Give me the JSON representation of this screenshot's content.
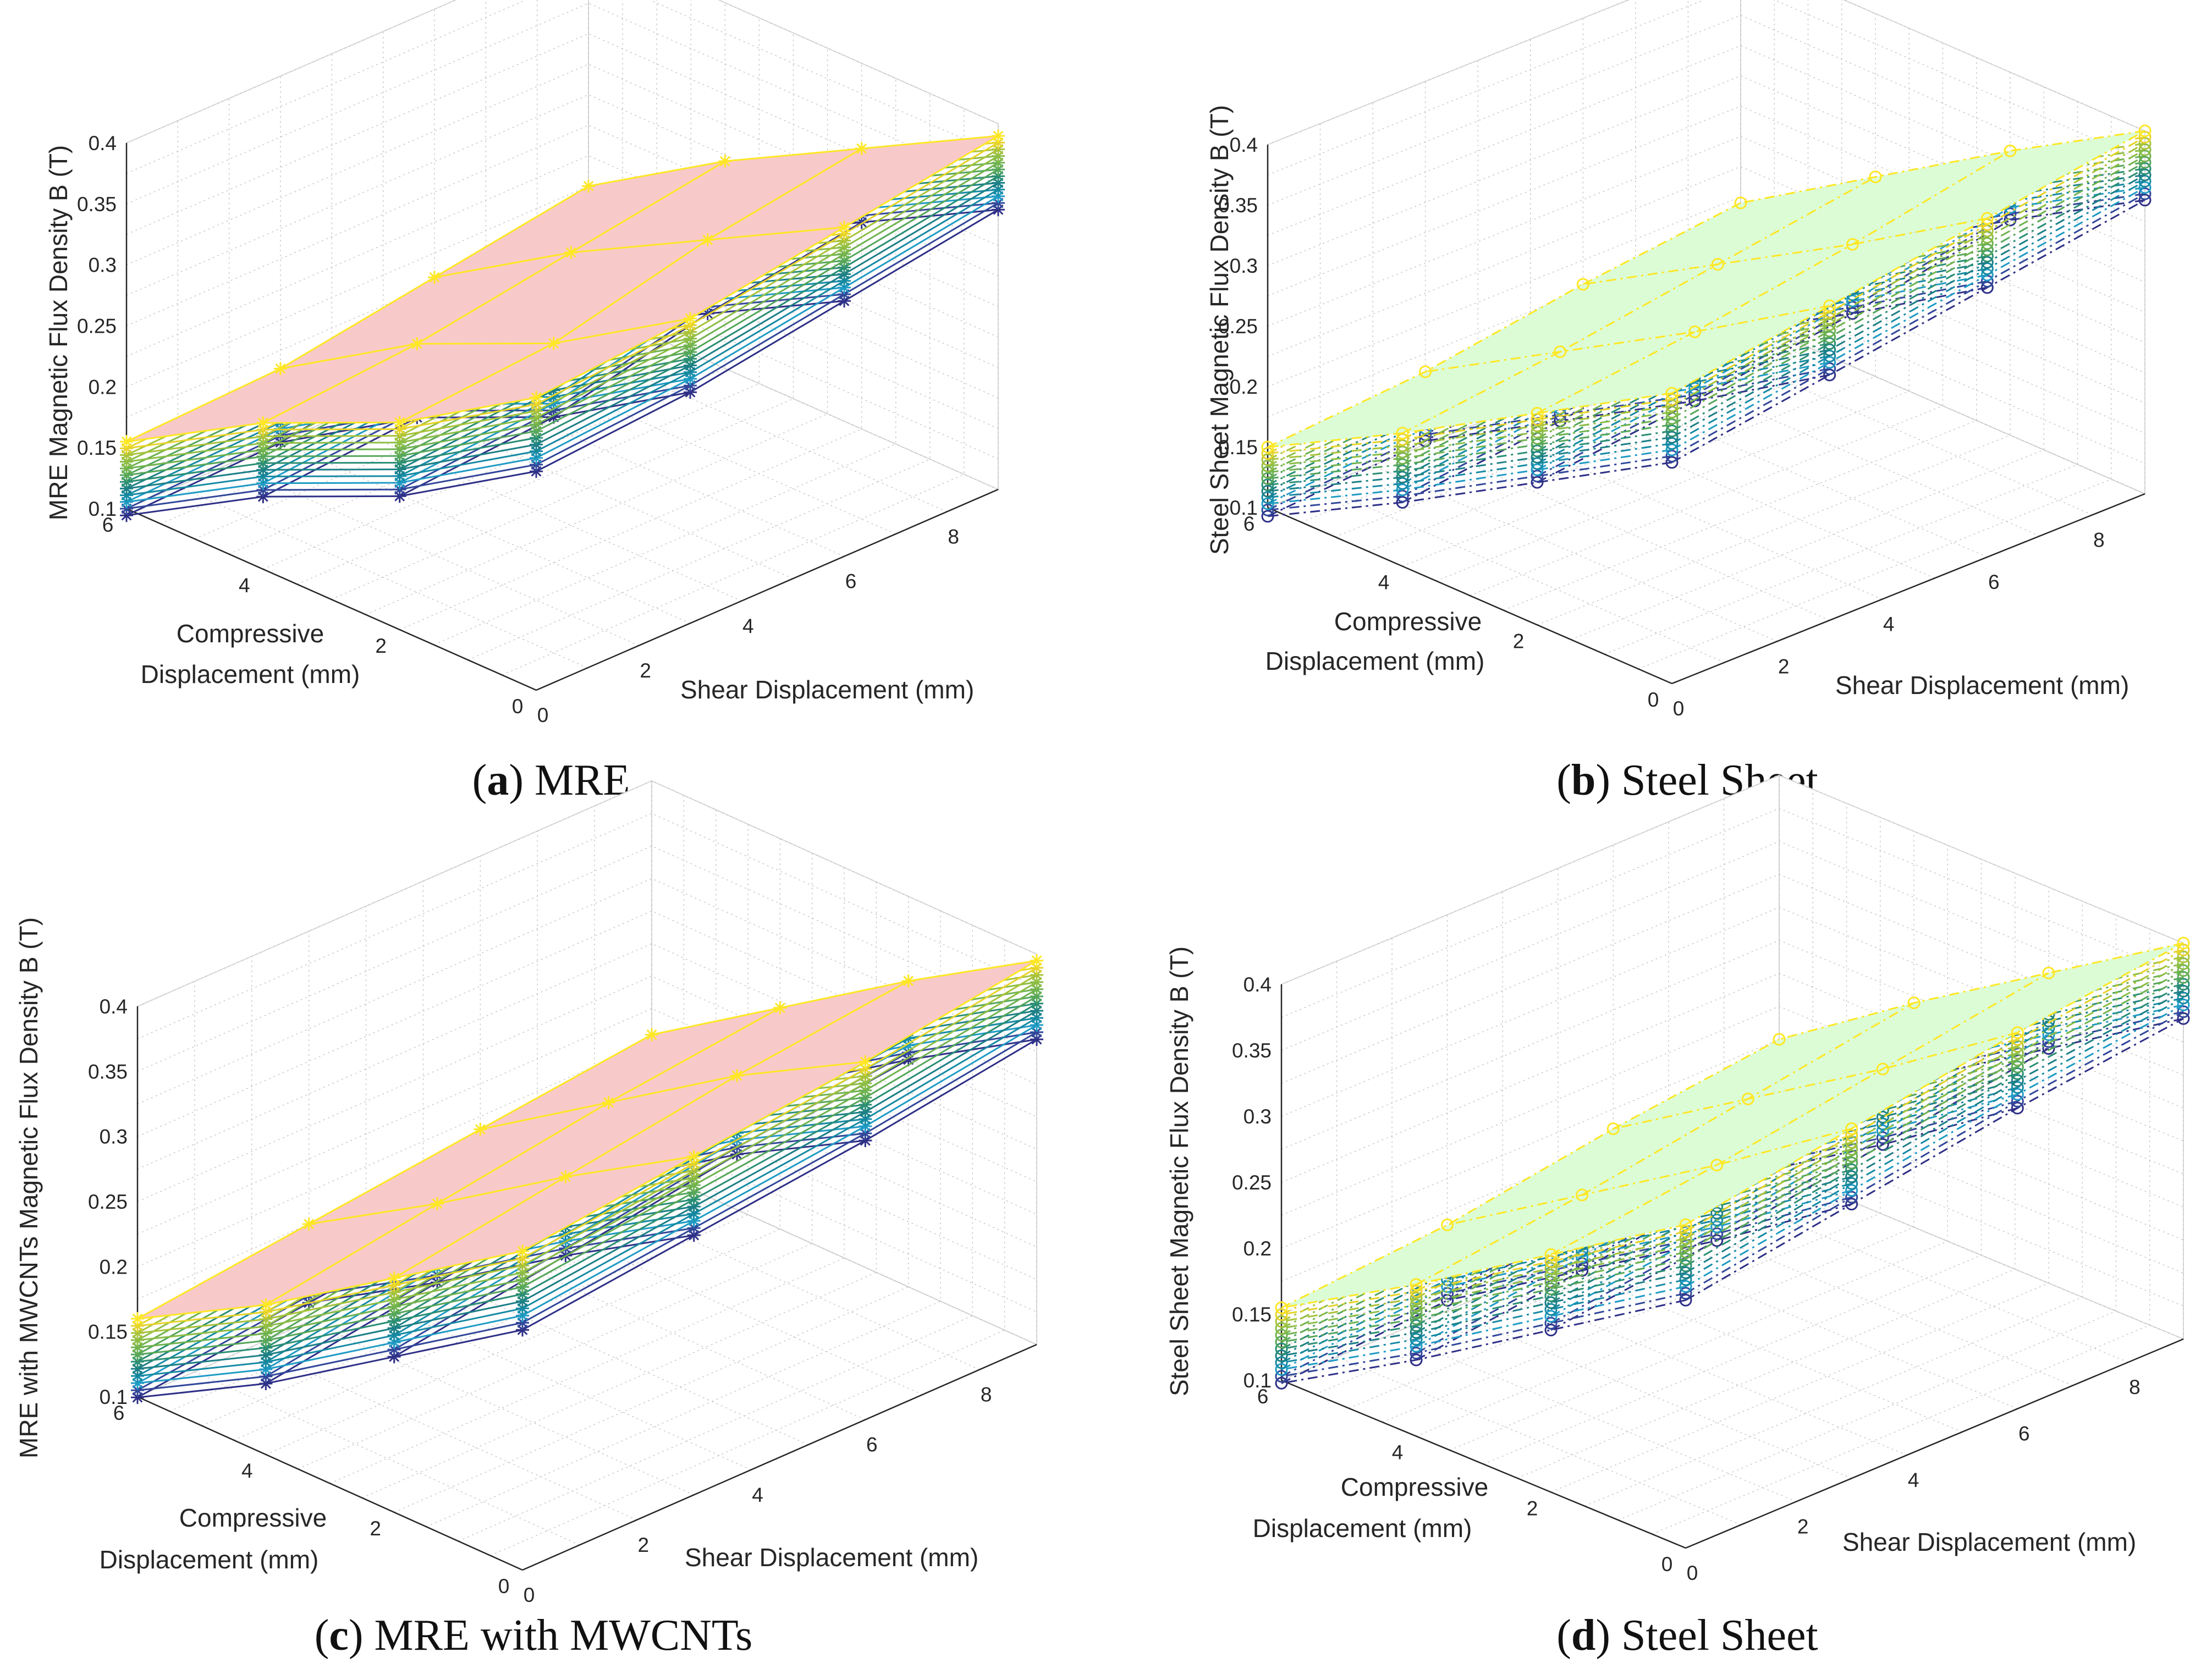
{
  "chart_data": [
    {
      "id": "a",
      "type": "surface3d",
      "caption_letter": "a",
      "caption_text": "MRE",
      "zlabel": "MRE Magnetic Flux Density B (T)",
      "xlabel": "Shear Displacement (mm)",
      "ylabel_lines": [
        "Compressive",
        "Displacement (mm)"
      ],
      "zlim": [
        0.1,
        0.4
      ],
      "zticks": [
        "0.1",
        "0.15",
        "0.2",
        "0.25",
        "0.3",
        "0.35",
        "0.4"
      ],
      "xticks": [
        "0",
        "2",
        "4",
        "6",
        "8"
      ],
      "yticks": [
        "0",
        "2",
        "4",
        "6"
      ],
      "marker": "star",
      "line_style": "solid",
      "surface_color": "#f8c9c9",
      "x": [
        0,
        3,
        6,
        9
      ],
      "y": [
        0,
        2,
        4,
        6
      ],
      "top_surface": [
        [
          0.34,
          0.35,
          0.37,
          0.39
        ],
        [
          0.27,
          0.28,
          0.31,
          0.33
        ],
        [
          0.22,
          0.23,
          0.25,
          0.27
        ],
        [
          0.155,
          0.16,
          0.18,
          0.2
        ]
      ],
      "series_count": 12,
      "series_step": 0.0055
    },
    {
      "id": "b",
      "type": "surface3d",
      "caption_letter": "b",
      "caption_text": "Steel Sheet",
      "zlabel": "Steel Sheet Magnetic Flux Density B (T)",
      "xlabel": "Shear Displacement (mm)",
      "ylabel_lines": [
        "Compressive",
        "Displacement (mm)"
      ],
      "zlim": [
        0.1,
        0.4
      ],
      "zticks": [
        "0.1",
        "0.15",
        "0.2",
        "0.25",
        "0.3",
        "0.35",
        "0.4"
      ],
      "xticks": [
        "0",
        "2",
        "4",
        "6",
        "8"
      ],
      "yticks": [
        "0",
        "2",
        "4",
        "6"
      ],
      "marker": "circle",
      "line_style": "dashdot",
      "surface_color": "#dcfcd6",
      "x": [
        0,
        3,
        6,
        9
      ],
      "y": [
        0,
        2,
        4,
        6
      ],
      "top_surface": [
        [
          0.34,
          0.36,
          0.38,
          0.4
        ],
        [
          0.275,
          0.29,
          0.31,
          0.335
        ],
        [
          0.21,
          0.225,
          0.245,
          0.265
        ],
        [
          0.15,
          0.16,
          0.18,
          0.195
        ]
      ],
      "series_count": 12,
      "series_step": 0.0052
    },
    {
      "id": "c",
      "type": "surface3d",
      "caption_letter": "c",
      "caption_text": "MRE with MWCNTs",
      "zlabel": "MRE with MWCNTs Magnetic Flux Density B (T)",
      "xlabel": "Shear Displacement (mm)",
      "ylabel_lines": [
        "Compressive",
        "Displacement (mm)"
      ],
      "zlim": [
        0.1,
        0.4
      ],
      "zticks": [
        "0.1",
        "0.15",
        "0.2",
        "0.25",
        "0.3",
        "0.35",
        "0.4"
      ],
      "xticks": [
        "0",
        "2",
        "4",
        "6",
        "8"
      ],
      "yticks": [
        "0",
        "2",
        "4",
        "6"
      ],
      "marker": "star",
      "line_style": "solid",
      "surface_color": "#f8c9c9",
      "x": [
        0,
        3,
        6,
        9
      ],
      "y": [
        0,
        2,
        4,
        6
      ],
      "top_surface": [
        [
          0.345,
          0.36,
          0.375,
          0.395
        ],
        [
          0.28,
          0.3,
          0.32,
          0.335
        ],
        [
          0.215,
          0.235,
          0.255,
          0.27
        ],
        [
          0.16,
          0.175,
          0.19,
          0.205
        ]
      ],
      "series_count": 12,
      "series_step": 0.0055
    },
    {
      "id": "d",
      "type": "surface3d",
      "caption_letter": "d",
      "caption_text": "Steel Sheet",
      "zlabel": "Steel Sheet Magnetic Flux Density B (T)",
      "xlabel": "Shear Displacement (mm)",
      "ylabel_lines": [
        "Compressive",
        "Displacement (mm)"
      ],
      "zlim": [
        0.1,
        0.4
      ],
      "zticks": [
        "0.1",
        "0.15",
        "0.2",
        "0.25",
        "0.3",
        "0.35",
        "0.4"
      ],
      "xticks": [
        "0",
        "2",
        "4",
        "6",
        "8"
      ],
      "yticks": [
        "0",
        "2",
        "4",
        "6"
      ],
      "marker": "circle",
      "line_style": "dashdot",
      "surface_color": "#dcfcd6",
      "x": [
        0,
        3,
        6,
        9
      ],
      "y": [
        0,
        2,
        4,
        6
      ],
      "top_surface": [
        [
          0.345,
          0.365,
          0.385,
          0.4
        ],
        [
          0.28,
          0.295,
          0.315,
          0.335
        ],
        [
          0.215,
          0.23,
          0.25,
          0.27
        ],
        [
          0.155,
          0.165,
          0.185,
          0.2
        ]
      ],
      "series_count": 12,
      "series_step": 0.0052
    }
  ]
}
